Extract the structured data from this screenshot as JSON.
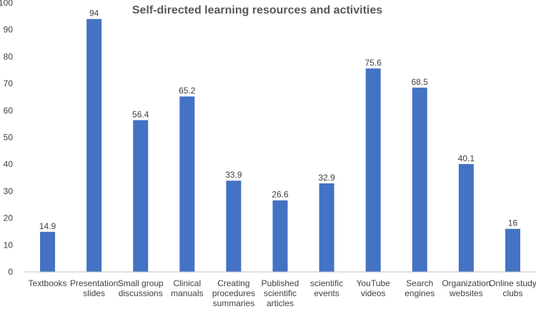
{
  "chart_data": {
    "type": "bar",
    "title": "Self-directed learning resources and activities",
    "xlabel": "",
    "ylabel": "",
    "ylim": [
      0,
      100
    ],
    "yticks": [
      0,
      10,
      20,
      30,
      40,
      50,
      60,
      70,
      80,
      90,
      100
    ],
    "grid": false,
    "legend": "none",
    "bar_color": "#4472C4",
    "categories": [
      [
        "Textbooks"
      ],
      [
        "Presentation",
        "slides"
      ],
      [
        "Small group",
        "discussions"
      ],
      [
        "Clinical",
        "manuals"
      ],
      [
        "Creating",
        "procedures",
        "summaries"
      ],
      [
        "Published",
        "scientific",
        "articles"
      ],
      [
        "scientific",
        "events"
      ],
      [
        "YouTube",
        "videos"
      ],
      [
        "Search",
        "engines"
      ],
      [
        "Organization",
        "websites"
      ],
      [
        "Online study",
        "clubs"
      ]
    ],
    "values": [
      14.9,
      94,
      56.4,
      65.2,
      33.9,
      26.6,
      32.9,
      75.6,
      68.5,
      40.1,
      16
    ],
    "value_labels": [
      "14.9",
      "94",
      "56.4",
      "65.2",
      "33.9",
      "26.6",
      "32.9",
      "75.6",
      "68.5",
      "40.1",
      "16"
    ]
  }
}
